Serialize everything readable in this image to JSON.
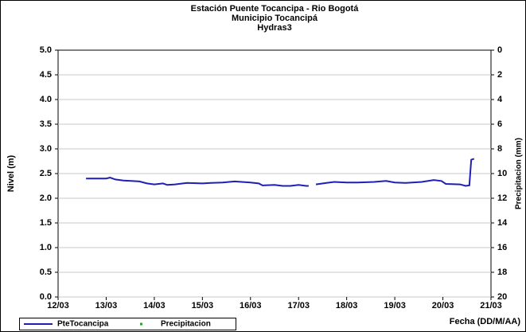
{
  "chart_data": {
    "type": "line",
    "title": [
      "Estación Puente Tocancipa - Rio Bogotá",
      "Municipio Tocancipá",
      "Hydras3"
    ],
    "xlabel": "Fecha (DD/M/AA)",
    "ylabel": "Nivel (m)",
    "y2label": "Precipitacion (mm)",
    "xlim": [
      0,
      9
    ],
    "xticks": [
      {
        "value": 0,
        "label": "12/03"
      },
      {
        "value": 1,
        "label": "13/03"
      },
      {
        "value": 2,
        "label": "14/03"
      },
      {
        "value": 3,
        "label": "15/03"
      },
      {
        "value": 4,
        "label": "16/03"
      },
      {
        "value": 5,
        "label": "17/03"
      },
      {
        "value": 6,
        "label": "18/03"
      },
      {
        "value": 7,
        "label": "19/03"
      },
      {
        "value": 8,
        "label": "20/03"
      },
      {
        "value": 9,
        "label": "21/03"
      }
    ],
    "ylim": [
      0,
      5
    ],
    "yticks": [
      {
        "value": 0,
        "label": "0.0"
      },
      0.5,
      {
        "value": 1,
        "label": "1.0"
      },
      1.5,
      {
        "value": 2,
        "label": "2.0"
      },
      2.5,
      {
        "value": 3,
        "label": "3.0"
      },
      3.5,
      {
        "value": 4,
        "label": "4.0"
      },
      4.5,
      {
        "value": 5,
        "label": "5.0"
      }
    ],
    "y2lim": [
      20,
      0
    ],
    "y2ticks": [
      0,
      2,
      4,
      6,
      8,
      10,
      12,
      14,
      16,
      18,
      20
    ],
    "legend": "bottom-left",
    "x": [
      0.58,
      1.0,
      1.08,
      1.19,
      1.36,
      1.52,
      1.69,
      1.85,
      2.0,
      2.18,
      2.27,
      2.43,
      2.68,
      3.0,
      3.18,
      3.42,
      3.67,
      4.0,
      4.17,
      4.25,
      4.5,
      4.67,
      4.83,
      5.0,
      5.16,
      5.21,
      5.28,
      5.36,
      5.58,
      5.74,
      6.0,
      6.23,
      6.57,
      6.82,
      7.0,
      7.23,
      7.56,
      7.81,
      7.97,
      8.06,
      8.36,
      8.47,
      8.55,
      8.59,
      8.65
    ],
    "series": [
      {
        "name": "PteTocancipa",
        "color": "#1f1fb4",
        "values": [
          2.4,
          2.4,
          2.42,
          2.38,
          2.36,
          2.35,
          2.34,
          2.3,
          2.28,
          2.3,
          2.27,
          2.28,
          2.31,
          2.3,
          2.31,
          2.32,
          2.34,
          2.32,
          2.3,
          2.26,
          2.27,
          2.25,
          2.25,
          2.27,
          2.25,
          2.25,
          null,
          2.28,
          2.31,
          2.33,
          2.32,
          2.32,
          2.33,
          2.35,
          2.32,
          2.31,
          2.33,
          2.37,
          2.35,
          2.29,
          2.28,
          2.25,
          2.26,
          2.78,
          2.8
        ]
      },
      {
        "name": "Precipitacion",
        "color": "#2e9e2e",
        "axis": "y2",
        "values": [
          null,
          null,
          null,
          null,
          null,
          null,
          null,
          null,
          null,
          null,
          null,
          null,
          null,
          null,
          null,
          null,
          null,
          null,
          null,
          null,
          null,
          null,
          null,
          null,
          null,
          null,
          null,
          null,
          null,
          null,
          null,
          null,
          null,
          null,
          null,
          null,
          null,
          null,
          null,
          null,
          null,
          null,
          null,
          null,
          null
        ]
      }
    ]
  }
}
